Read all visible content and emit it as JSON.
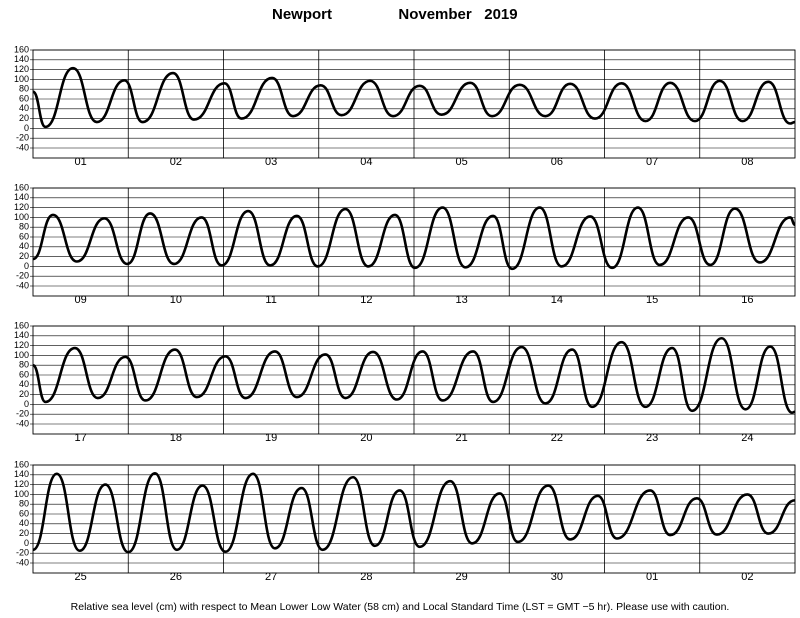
{
  "header": {
    "location": "Newport",
    "period": "November   2019"
  },
  "footer": "Relative sea level (cm) with respect to Mean Lower Low Water (58 cm) and Local Standard Time (LST = GMT −5 hr). Please use with caution.",
  "chart_data": [
    {
      "type": "line",
      "categories": [
        "01",
        "02",
        "03",
        "04",
        "05",
        "06",
        "07",
        "08"
      ],
      "xlim": [
        0,
        8
      ],
      "ylim": [
        -40,
        160
      ],
      "yticks": [
        -40,
        -20,
        0,
        20,
        40,
        60,
        80,
        100,
        120,
        140,
        160
      ],
      "grid": true,
      "x": [
        0,
        0.13,
        0.42,
        0.67,
        0.96,
        1.15,
        1.47,
        1.69,
        2.01,
        2.19,
        2.51,
        2.73,
        3.02,
        3.24,
        3.54,
        3.78,
        4.06,
        4.29,
        4.59,
        4.82,
        5.11,
        5.38,
        5.64,
        5.9,
        6.18,
        6.43,
        6.69,
        6.95,
        7.21,
        7.45,
        7.72,
        7.95,
        8
      ],
      "series": [
        {
          "color": "#000000",
          "values": [
            75,
            3,
            123,
            13,
            98,
            13,
            113,
            18,
            92,
            20,
            103,
            25,
            88,
            27,
            97,
            25,
            87,
            28,
            93,
            25,
            89,
            25,
            91,
            20,
            92,
            15,
            93,
            15,
            97,
            15,
            95,
            10,
            13
          ]
        }
      ]
    },
    {
      "type": "line",
      "categories": [
        "09",
        "10",
        "11",
        "12",
        "13",
        "14",
        "15",
        "16"
      ],
      "xlim": [
        0,
        8
      ],
      "ylim": [
        -40,
        160
      ],
      "yticks": [
        -40,
        -20,
        0,
        20,
        40,
        60,
        80,
        100,
        120,
        140,
        160
      ],
      "grid": true,
      "x": [
        0,
        0.21,
        0.46,
        0.75,
        0.99,
        1.23,
        1.48,
        1.77,
        1.98,
        2.26,
        2.49,
        2.77,
        2.99,
        3.28,
        3.52,
        3.8,
        4.01,
        4.3,
        4.54,
        4.83,
        5.03,
        5.32,
        5.55,
        5.85,
        6.08,
        6.35,
        6.58,
        6.88,
        7.11,
        7.37,
        7.63,
        7.95,
        8
      ],
      "series": [
        {
          "color": "#000000",
          "values": [
            15,
            105,
            10,
            98,
            5,
            108,
            5,
            100,
            2,
            113,
            2,
            103,
            0,
            117,
            0,
            105,
            -3,
            120,
            -2,
            103,
            -5,
            120,
            0,
            102,
            -3,
            120,
            3,
            100,
            3,
            118,
            8,
            100,
            85
          ]
        }
      ]
    },
    {
      "type": "line",
      "categories": [
        "17",
        "18",
        "19",
        "20",
        "21",
        "22",
        "23",
        "24"
      ],
      "xlim": [
        0,
        8
      ],
      "ylim": [
        -40,
        160
      ],
      "yticks": [
        -40,
        -20,
        0,
        20,
        40,
        60,
        80,
        100,
        120,
        140,
        160
      ],
      "grid": true,
      "x": [
        0,
        0.13,
        0.44,
        0.68,
        0.97,
        1.18,
        1.49,
        1.72,
        2.02,
        2.23,
        2.54,
        2.77,
        3.07,
        3.28,
        3.57,
        3.82,
        4.09,
        4.3,
        4.62,
        4.83,
        5.13,
        5.38,
        5.66,
        5.87,
        6.18,
        6.43,
        6.71,
        6.92,
        7.23,
        7.48,
        7.74,
        7.97,
        8
      ],
      "series": [
        {
          "color": "#000000",
          "values": [
            80,
            5,
            115,
            13,
            97,
            8,
            112,
            15,
            98,
            13,
            108,
            15,
            102,
            13,
            107,
            10,
            108,
            8,
            108,
            5,
            117,
            2,
            112,
            -5,
            127,
            -5,
            115,
            -13,
            135,
            -10,
            118,
            -17,
            -15
          ]
        }
      ]
    },
    {
      "type": "line",
      "categories": [
        "25",
        "26",
        "27",
        "28",
        "29",
        "30",
        "01",
        "02"
      ],
      "xlim": [
        0,
        8
      ],
      "ylim": [
        -40,
        160
      ],
      "yticks": [
        -40,
        -20,
        0,
        20,
        40,
        60,
        80,
        100,
        120,
        140,
        160
      ],
      "grid": true,
      "x": [
        0,
        0.25,
        0.49,
        0.76,
        1,
        1.28,
        1.51,
        1.78,
        2.02,
        2.31,
        2.54,
        2.82,
        3.04,
        3.36,
        3.59,
        3.85,
        4.06,
        4.38,
        4.61,
        4.9,
        5.09,
        5.41,
        5.64,
        5.93,
        6.13,
        6.48,
        6.69,
        6.97,
        7.18,
        7.5,
        7.72,
        8
      ],
      "series": [
        {
          "color": "#000000",
          "values": [
            -13,
            142,
            -15,
            120,
            -18,
            143,
            -13,
            118,
            -17,
            142,
            -10,
            113,
            -13,
            135,
            -5,
            108,
            -7,
            127,
            0,
            102,
            3,
            118,
            8,
            97,
            10,
            108,
            17,
            92,
            18,
            100,
            20,
            88
          ]
        }
      ]
    }
  ]
}
